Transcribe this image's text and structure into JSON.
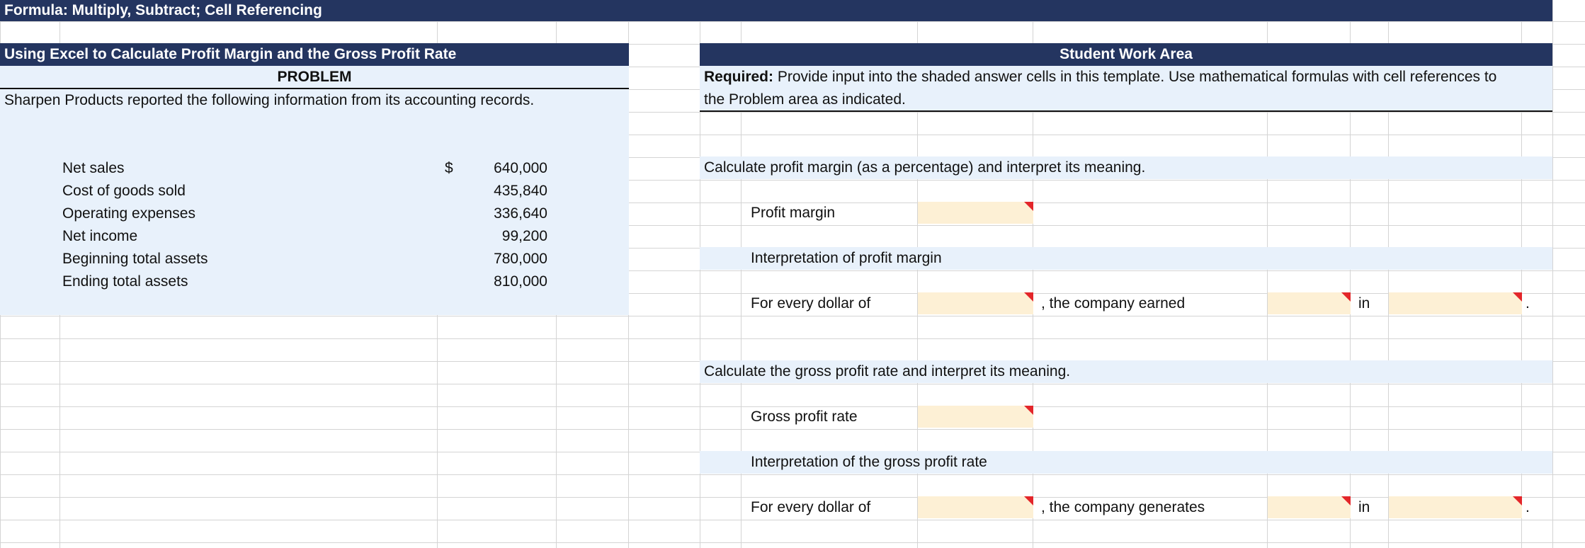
{
  "header": {
    "title": "Formula: Multiply, Subtract; Cell Referencing"
  },
  "left_panel": {
    "title": "Using Excel to Calculate Profit Margin and the Gross Profit Rate",
    "section": "PROBLEM",
    "intro": "Sharpen Products reported the following information from its accounting records.",
    "currency": "$",
    "items": [
      {
        "label": "Net sales",
        "value": "640,000"
      },
      {
        "label": "Cost of goods sold",
        "value": "435,840"
      },
      {
        "label": "Operating expenses",
        "value": "336,640"
      },
      {
        "label": "Net income",
        "value": "99,200"
      },
      {
        "label": "Beginning total assets",
        "value": "780,000"
      },
      {
        "label": "Ending total assets",
        "value": "810,000"
      }
    ]
  },
  "right_panel": {
    "title": "Student Work Area",
    "required_bold": "Required:",
    "required_line1": "Provide input into the shaded answer cells in this template. Use mathematical formulas with cell references to",
    "required_line2": "the Problem area as indicated.",
    "profit_section": {
      "heading": "Calculate profit margin (as a percentage) and interpret its meaning.",
      "result_label": "Profit margin",
      "interpretation_heading": "Interpretation of profit margin",
      "sentence_start": "For every dollar of",
      "sentence_mid": ", the company earned",
      "sentence_in": "in",
      "sentence_end": "."
    },
    "gross_section": {
      "heading": "Calculate  the gross profit rate and interpret its meaning.",
      "result_label": "Gross profit rate",
      "interpretation_heading": "Interpretation of the gross profit rate",
      "sentence_start": "For every dollar of",
      "sentence_mid": ", the company generates",
      "sentence_in": "in",
      "sentence_end": "."
    }
  },
  "colors": {
    "header_bg": "#243560",
    "panel_bg": "#e8f1fb",
    "answer_cell": "#fdf0d5",
    "comment_marker": "#e3262a"
  }
}
